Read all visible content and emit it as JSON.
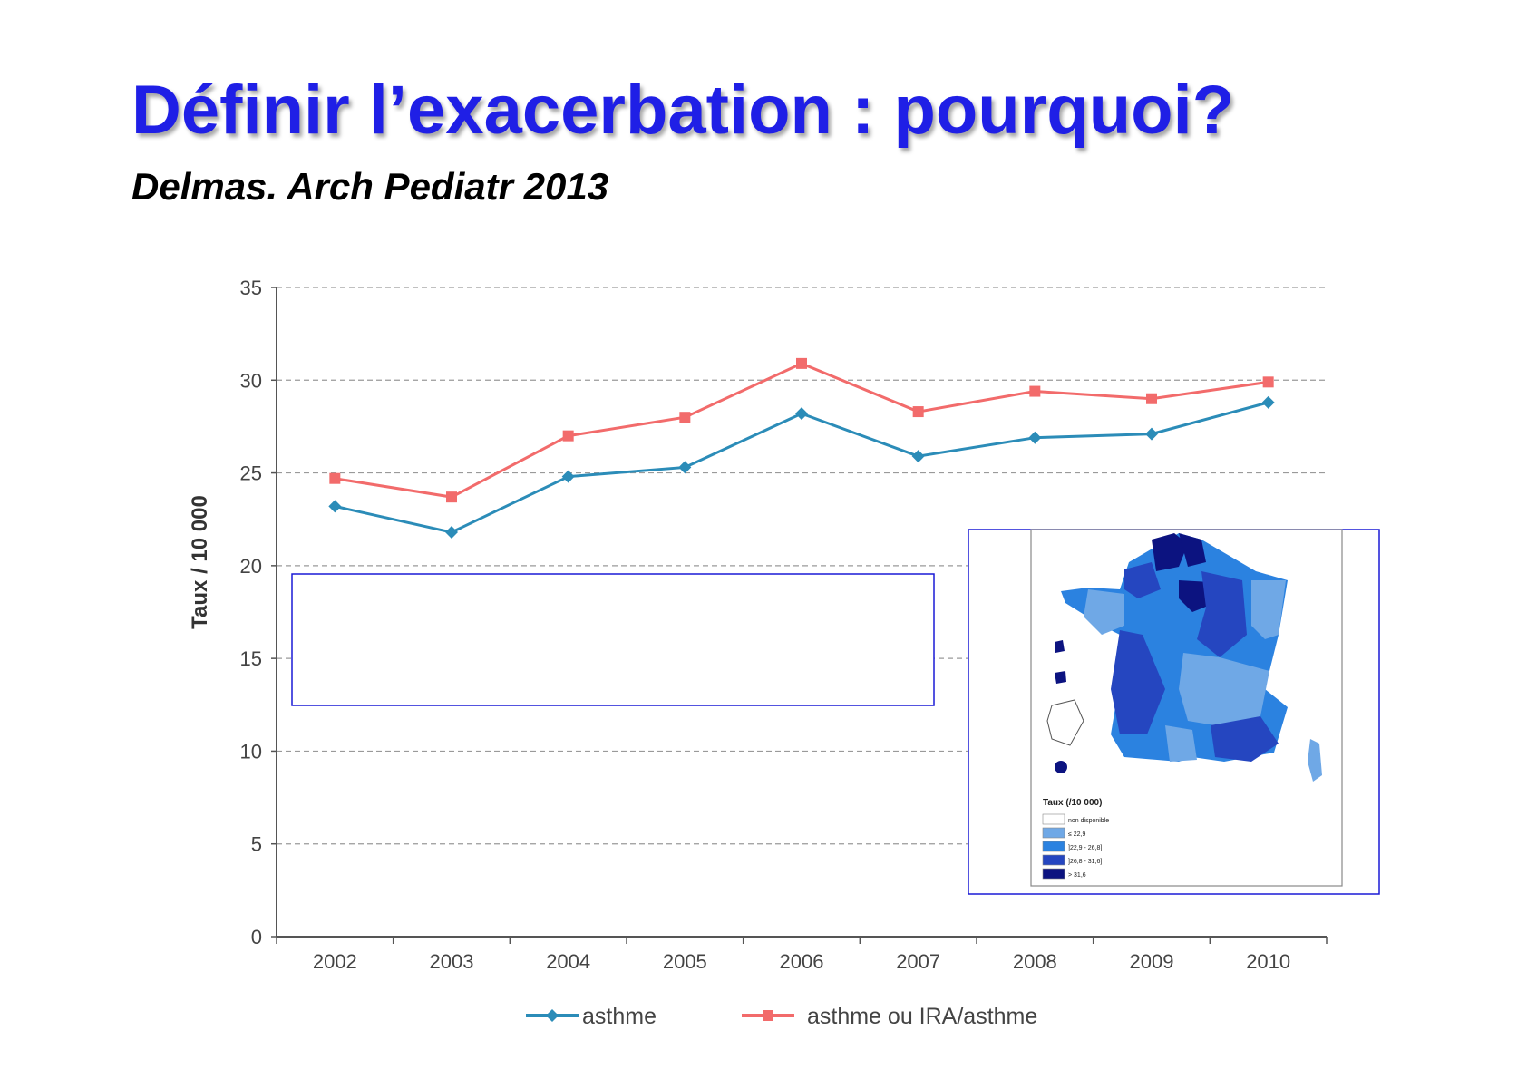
{
  "slide": {
    "title": "Définir l’exacerbation : pourquoi?",
    "subtitle": "Delmas. Arch Pediatr 2013"
  },
  "chart_data": {
    "type": "line",
    "x": [
      "2002",
      "2003",
      "2004",
      "2005",
      "2006",
      "2007",
      "2008",
      "2009",
      "2010"
    ],
    "series": [
      {
        "name": "asthme",
        "color": "#2b8cb8",
        "marker": "diamond",
        "values": [
          23.2,
          21.8,
          24.8,
          25.3,
          28.2,
          25.9,
          26.9,
          27.1,
          28.8
        ]
      },
      {
        "name": "asthme ou IRA/asthme",
        "color": "#f26b6b",
        "marker": "square",
        "values": [
          24.7,
          23.7,
          27.0,
          28.0,
          30.9,
          28.3,
          29.4,
          29.0,
          29.9
        ]
      }
    ],
    "ylabel": "Taux / 10 000",
    "xlabel": "",
    "ylim": [
      0,
      35
    ],
    "yticks": [
      0,
      5,
      10,
      15,
      20,
      25,
      30,
      35
    ],
    "grid": "horizontal-dashed",
    "legend_position": "bottom"
  },
  "inset_map": {
    "legend_title": "Taux (/10 000)",
    "legend": [
      {
        "label": "non disponible",
        "color": "#ffffff"
      },
      {
        "label": "≤ 22,9",
        "color": "#6fa8e6"
      },
      {
        "label": "]22,9 - 26,8]",
        "color": "#2b82e0"
      },
      {
        "label": "]26,8 - 31,6]",
        "color": "#2546c0"
      },
      {
        "label": "> 31,6",
        "color": "#0c1380"
      }
    ]
  },
  "colors": {
    "title": "#1f1fe6",
    "highlight_box": "#1a1ad6"
  }
}
